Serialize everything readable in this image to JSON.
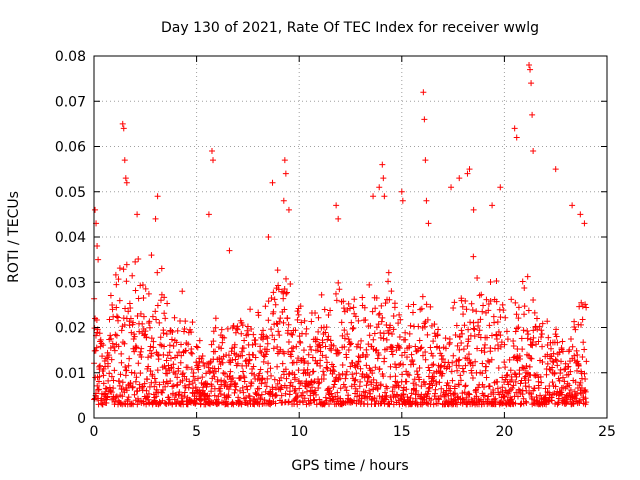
{
  "chart_data": {
    "type": "scatter",
    "title": "Day 130 of 2021, Rate Of TEC Index for receiver wwlg",
    "xlabel": "GPS time / hours",
    "ylabel": "ROTI / TECUs",
    "xlim": [
      0,
      25
    ],
    "ylim": [
      0,
      0.08
    ],
    "xticks": [
      "0",
      "5",
      "10",
      "15",
      "20",
      "25"
    ],
    "yticks": [
      "0",
      "0.01",
      "0.02",
      "0.03",
      "0.04",
      "0.05",
      "0.06",
      "0.07",
      "0.08"
    ],
    "grid": true,
    "marker": "+",
    "marker_color": "#ff0000",
    "series": [
      {
        "name": "ROTI",
        "x": [
          0.05,
          0.1,
          0.15,
          0.2,
          1.4,
          1.45,
          1.5,
          1.55,
          1.6,
          2.1,
          2.8,
          3.0,
          3.1,
          4.3,
          5.6,
          5.75,
          5.8,
          6.6,
          8.5,
          8.7,
          9.25,
          9.3,
          9.35,
          9.5,
          11.8,
          11.9,
          13.6,
          13.9,
          14.05,
          14.1,
          14.15,
          15.0,
          15.05,
          16.05,
          16.1,
          16.15,
          16.2,
          16.3,
          17.4,
          17.8,
          18.2,
          18.3,
          18.5,
          19.4,
          19.8,
          20.5,
          20.6,
          21.2,
          21.25,
          21.3,
          21.35,
          21.4,
          22.5,
          23.3,
          23.7,
          23.9
        ],
        "y": [
          0.046,
          0.043,
          0.038,
          0.035,
          0.065,
          0.064,
          0.057,
          0.053,
          0.052,
          0.045,
          0.036,
          0.044,
          0.049,
          0.028,
          0.045,
          0.059,
          0.057,
          0.037,
          0.04,
          0.052,
          0.048,
          0.057,
          0.054,
          0.046,
          0.047,
          0.044,
          0.049,
          0.051,
          0.056,
          0.053,
          0.049,
          0.05,
          0.048,
          0.072,
          0.066,
          0.057,
          0.048,
          0.043,
          0.051,
          0.053,
          0.054,
          0.055,
          0.046,
          0.047,
          0.051,
          0.064,
          0.062,
          0.078,
          0.077,
          0.074,
          0.067,
          0.059,
          0.055,
          0.047,
          0.045,
          0.043
        ]
      }
    ],
    "generated_density": {
      "x_start": 0.0,
      "x_end": 24.0,
      "x_step": 0.033,
      "floor": 0.003,
      "points_per_step": 3,
      "note": "Dense background cloud: each step draws points whose upper envelope follows the per-hour profile below (values in TECU, data units)",
      "profile_hours": [
        0,
        0.5,
        1,
        1.5,
        2,
        2.5,
        3,
        3.5,
        4,
        4.5,
        5,
        5.5,
        6,
        6.5,
        7,
        7.5,
        8,
        8.5,
        9,
        9.5,
        10,
        10.5,
        11,
        11.5,
        12,
        12.5,
        13,
        13.5,
        14,
        14.5,
        15,
        15.5,
        16,
        16.5,
        17,
        17.5,
        18,
        18.5,
        19,
        19.5,
        20,
        20.5,
        21,
        21.5,
        22,
        22.5,
        23,
        23.5,
        24
      ],
      "profile_upper": [
        0.03,
        0.022,
        0.034,
        0.04,
        0.038,
        0.035,
        0.04,
        0.032,
        0.024,
        0.028,
        0.022,
        0.016,
        0.025,
        0.022,
        0.028,
        0.03,
        0.026,
        0.032,
        0.038,
        0.034,
        0.026,
        0.03,
        0.03,
        0.038,
        0.036,
        0.03,
        0.028,
        0.034,
        0.04,
        0.036,
        0.024,
        0.026,
        0.034,
        0.03,
        0.02,
        0.026,
        0.036,
        0.038,
        0.032,
        0.034,
        0.03,
        0.03,
        0.038,
        0.03,
        0.024,
        0.022,
        0.02,
        0.026,
        0.034
      ]
    }
  }
}
